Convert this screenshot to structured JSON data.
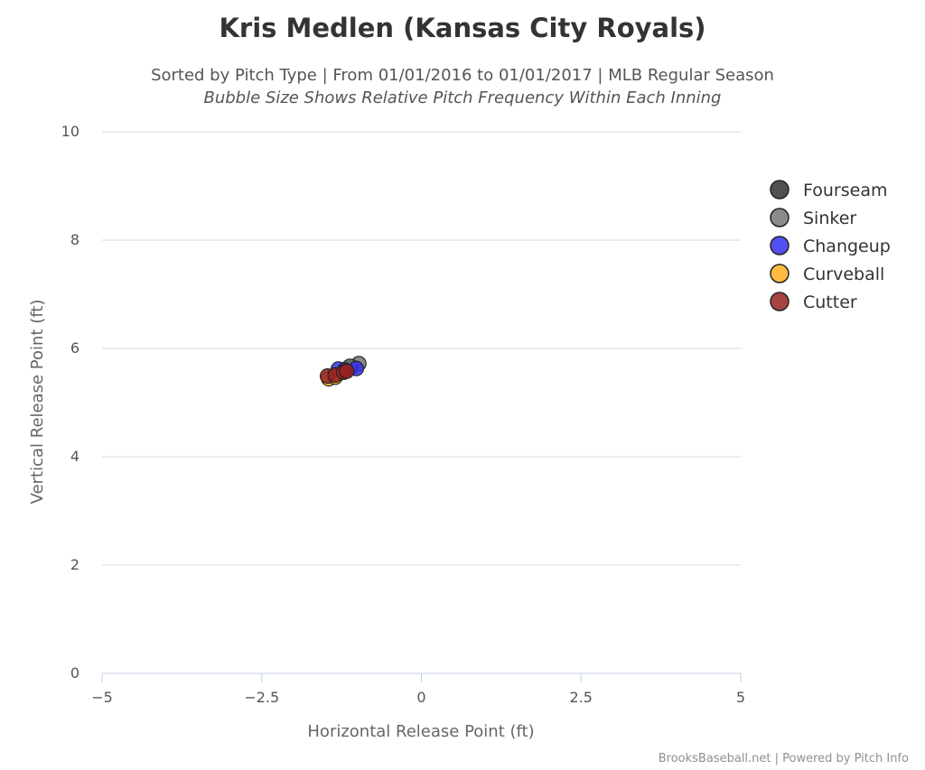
{
  "chart_data": {
    "type": "scatter",
    "title": "Kris Medlen (Kansas City Royals)",
    "subtitle": "Sorted by Pitch Type | From 01/01/2016 to 01/01/2017 | MLB Regular Season",
    "subtitle2": "Bubble Size Shows Relative Pitch Frequency Within Each Inning",
    "xlabel": "Horizontal Release Point (ft)",
    "ylabel": "Vertical Release Point (ft)",
    "xlim": [
      -5,
      5
    ],
    "ylim": [
      0,
      10
    ],
    "x_ticks": [
      {
        "value": -5,
        "label": "−5"
      },
      {
        "value": -2.5,
        "label": "−2.5"
      },
      {
        "value": 0,
        "label": "0"
      },
      {
        "value": 2.5,
        "label": "2.5"
      },
      {
        "value": 5,
        "label": "5"
      }
    ],
    "y_ticks": [
      {
        "value": 0,
        "label": "0"
      },
      {
        "value": 2,
        "label": "2"
      },
      {
        "value": 4,
        "label": "4"
      },
      {
        "value": 6,
        "label": "6"
      },
      {
        "value": 8,
        "label": "8"
      },
      {
        "value": 10,
        "label": "10"
      }
    ],
    "grid": true,
    "legend_position": "right",
    "series": [
      {
        "name": "Fourseam",
        "color": "#333333",
        "points": [
          {
            "x": -1.15,
            "y": 5.64
          },
          {
            "x": -1.08,
            "y": 5.66
          }
        ]
      },
      {
        "name": "Sinker",
        "color": "#777777",
        "points": [
          {
            "x": -0.98,
            "y": 5.72
          },
          {
            "x": -1.12,
            "y": 5.67
          }
        ]
      },
      {
        "name": "Changeup",
        "color": "#3333ee",
        "points": [
          {
            "x": -1.3,
            "y": 5.62
          },
          {
            "x": -1.02,
            "y": 5.63
          },
          {
            "x": -1.2,
            "y": 5.6
          }
        ]
      },
      {
        "name": "Curveball",
        "color": "#ffb020",
        "points": [
          {
            "x": -1.45,
            "y": 5.44
          },
          {
            "x": -1.35,
            "y": 5.47
          }
        ]
      },
      {
        "name": "Cutter",
        "color": "#992222",
        "points": [
          {
            "x": -1.47,
            "y": 5.49
          },
          {
            "x": -1.35,
            "y": 5.51
          },
          {
            "x": -1.22,
            "y": 5.56
          },
          {
            "x": -1.17,
            "y": 5.58
          }
        ]
      }
    ]
  },
  "credits": "BrooksBaseball.net | Powered by Pitch Info"
}
